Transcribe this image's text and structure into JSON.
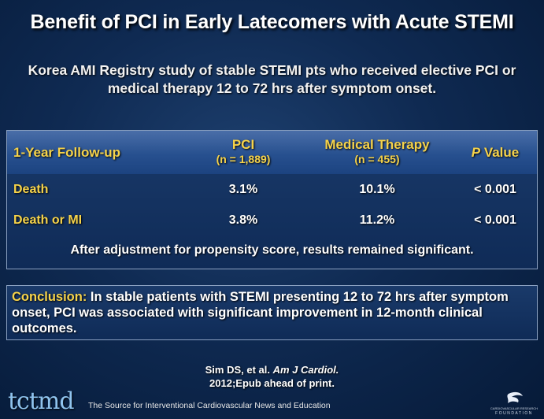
{
  "title": "Benefit of PCI in Early Latecomers with Acute STEMI",
  "subtitle": "Korea AMI Registry study of stable STEMI pts who received elective PCI or medical therapy 12 to 72 hrs after symptom onset.",
  "table": {
    "col1_header": "1-Year Follow-up",
    "col2_header": "PCI",
    "col2_sub": "(n = 1,889)",
    "col3_header": "Medical Therapy",
    "col3_sub": "(n = 455)",
    "col4_header_italic": "P",
    "col4_header_rest": " Value",
    "rows": [
      {
        "label": "Death",
        "pci": "3.1%",
        "medical": "10.1%",
        "p": "< 0.001"
      },
      {
        "label": "Death or MI",
        "pci": "3.8%",
        "medical": "11.2%",
        "p": "< 0.001"
      }
    ],
    "note": "After adjustment for propensity score, results remained significant."
  },
  "conclusion": {
    "label": "Conclusion:",
    "text": " In stable patients with STEMI presenting 12 to 72 hrs after symptom onset, PCI was associated with significant improvement in 12-month clinical outcomes."
  },
  "citation": {
    "authors": "Sim DS, et al. ",
    "journal": "Am J Cardiol.",
    "line2": "2012;Epub ahead of print."
  },
  "footer": {
    "logo": "tctmd",
    "tagline": "The Source for Interventional Cardiovascular News and Education",
    "crf_line1": "CARDIOVASCULAR RESEARCH",
    "crf_line2": "FOUNDATION"
  }
}
